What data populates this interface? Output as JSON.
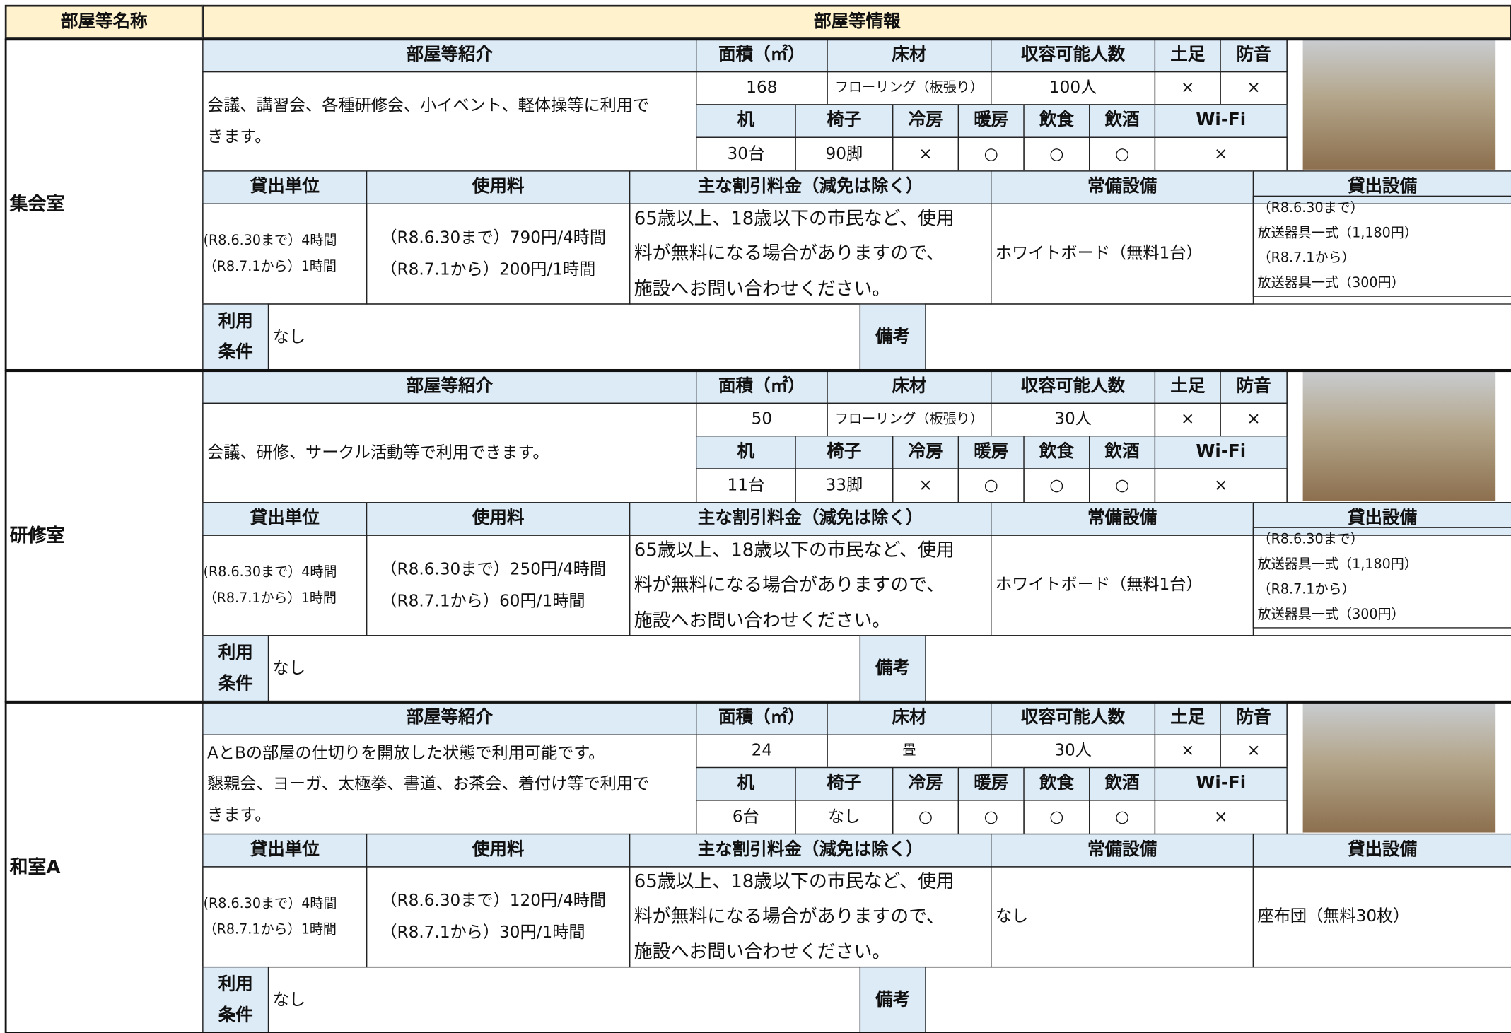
{
  "header": {
    "name_col": "部屋等名称",
    "info_col": "部屋等情報"
  },
  "labels": {
    "intro": "部屋等紹介",
    "area": "面積（㎡）",
    "floor": "床材",
    "capacity": "収容可能人数",
    "shoes": "土足",
    "soundproof": "防音",
    "desk": "机",
    "chair": "椅子",
    "cooling": "冷房",
    "heating": "暖房",
    "food": "飲食",
    "alcohol": "飲酒",
    "wifi": "Wi-Fi",
    "unit": "貸出単位",
    "fee": "使用料",
    "discount": "主な割引料金（減免は除く）",
    "equipment": "常備設備",
    "rental": "貸出設備",
    "conditions": [
      "利用",
      "条件"
    ],
    "remarks": "備考"
  },
  "rooms": [
    {
      "name": "集会室",
      "intro": [
        "会議、講習会、各種研修会、小イベント、軽体操等に利用で",
        "きます。"
      ],
      "area": 168,
      "floor": "フローリング（板張り）",
      "capacity": "100人",
      "shoes": "×",
      "soundproof": "×",
      "desk": "30台",
      "chair": "90脚",
      "cooling": "×",
      "heating": "○",
      "food": "○",
      "alcohol": "○",
      "wifi": "×",
      "unit": [
        "(R8.6.30まで）4時間",
        "（R8.7.1から）1時間"
      ],
      "fee": [
        "（R8.6.30まで）790円/4時間",
        "（R8.7.1から）200円/1時間"
      ],
      "discount": [
        "65歳以上、18歳以下の市民など、使用",
        "料が無料になる場合がありますので、",
        "施設へお問い合わせください。"
      ],
      "equipment": "ホワイトボード（無料1台）",
      "rental": [
        "（R8.6.30まで）",
        "放送器具一式（1,180円）",
        "（R8.7.1から）",
        "放送器具一式（300円）"
      ],
      "conditions": "なし"
    },
    {
      "name": "研修室",
      "intro": [
        "会議、研修、サークル活動等で利用できます。"
      ],
      "area": 50,
      "floor": "フローリング（板張り）",
      "capacity": "30人",
      "shoes": "×",
      "soundproof": "×",
      "desk": "11台",
      "chair": "33脚",
      "cooling": "×",
      "heating": "○",
      "food": "○",
      "alcohol": "○",
      "wifi": "×",
      "unit": [
        "(R8.6.30まで）4時間",
        "（R8.7.1から）1時間"
      ],
      "fee": [
        "（R8.6.30まで）250円/4時間",
        "（R8.7.1から）60円/1時間"
      ],
      "discount": [
        "65歳以上、18歳以下の市民など、使用",
        "料が無料になる場合がありますので、",
        "施設へお問い合わせください。"
      ],
      "equipment": "ホワイトボード（無料1台）",
      "rental": [
        "（R8.6.30まで）",
        "放送器具一式（1,180円）",
        "（R8.7.1から）",
        "放送器具一式（300円）"
      ],
      "conditions": "なし"
    },
    {
      "name": "和室A",
      "intro": [
        "AとBの部屋の仕切りを開放した状態で利用可能です。",
        "懇親会、ヨーガ、太極拳、書道、お茶会、着付け等で利用で",
        "きます。"
      ],
      "area": 24,
      "floor": "畳",
      "capacity": "30人",
      "shoes": "×",
      "soundproof": "×",
      "desk": "6台",
      "chair": "なし",
      "cooling": "○",
      "heating": "○",
      "food": "○",
      "alcohol": "○",
      "wifi": "×",
      "unit": [
        "(R8.6.30まで）4時間",
        "（R8.7.1から）1時間"
      ],
      "fee": [
        "（R8.6.30まで）120円/4時間",
        "（R8.7.1から）30円/1時間"
      ],
      "discount": [
        "65歳以上、18歳以下の市民など、使用",
        "料が無料になる場合がありますので、",
        "施設へお問い合わせください。"
      ],
      "equipment": "なし",
      "rental": [
        "座布団（無料30枚）"
      ],
      "conditions": "なし"
    }
  ]
}
